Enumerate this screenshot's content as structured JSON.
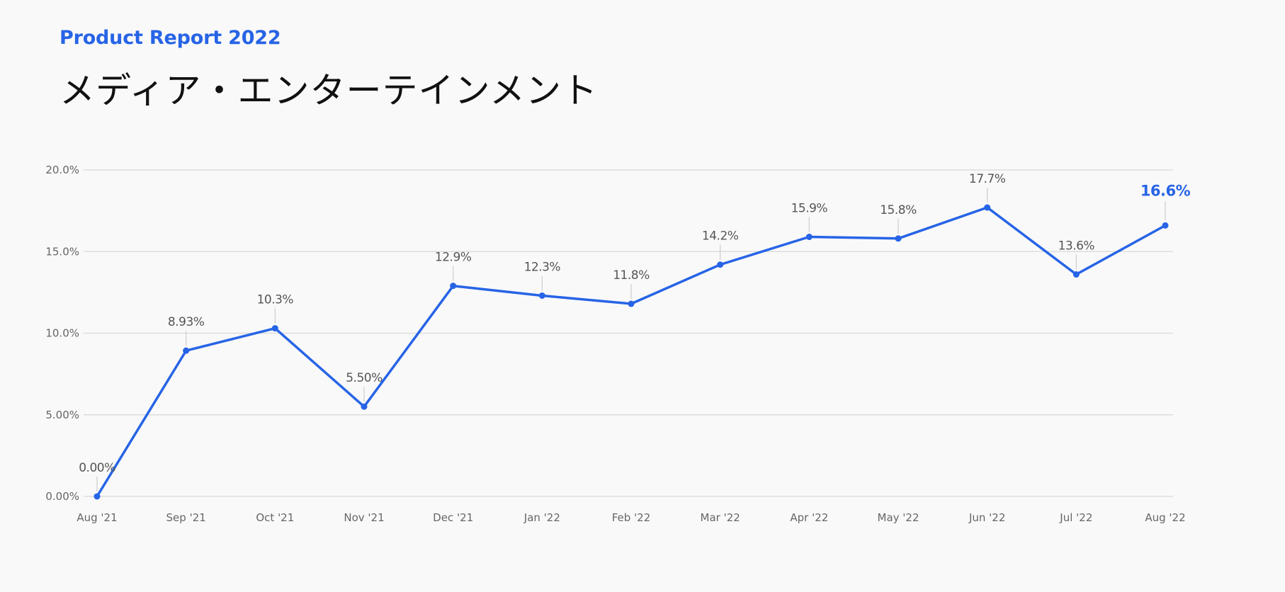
{
  "header": {
    "report_label": "Product Report 2022",
    "title": "メディア・エンターテインメント"
  },
  "colors": {
    "accent": "#2764e6",
    "grid": "#dddddd",
    "label": "#555555"
  },
  "chart_data": {
    "type": "line",
    "categories": [
      "Aug '21",
      "Sep '21",
      "Oct '21",
      "Nov '21",
      "Dec '21",
      "Jan '22",
      "Feb '22",
      "Mar '22",
      "Apr '22",
      "May '22",
      "Jun '22",
      "Jul '22",
      "Aug '22"
    ],
    "values": [
      0.0,
      8.93,
      10.3,
      5.5,
      12.9,
      12.3,
      11.8,
      14.2,
      15.9,
      15.8,
      17.7,
      13.6,
      16.6
    ],
    "data_labels": [
      "0.00%",
      "8.93%",
      "10.3%",
      "5.50%",
      "12.9%",
      "12.3%",
      "11.8%",
      "14.2%",
      "15.9%",
      "15.8%",
      "17.7%",
      "13.6%",
      "16.6%"
    ],
    "y_ticks": [
      0,
      5,
      10,
      15,
      20
    ],
    "y_tick_labels": [
      "0.00%",
      "5.00%",
      "10.0%",
      "15.0%",
      "20.0%"
    ],
    "ylim": [
      0,
      20
    ],
    "grid": true,
    "legend": "none",
    "highlight_last": true
  }
}
